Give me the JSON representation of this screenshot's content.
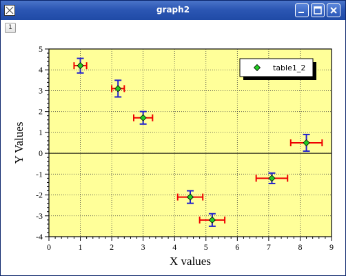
{
  "window": {
    "title": "graph2"
  },
  "tabs": [
    {
      "label": "1"
    }
  ],
  "colors": {
    "plot_background": "#ffff99",
    "marker": "#22cc22",
    "x_error_bar": "#ee0000",
    "y_error_bar": "#2222cc",
    "titlebar": "#2c57b4"
  },
  "icons": {
    "app": "graph-app-icon",
    "minimize": "minimize-icon",
    "maximize": "maximize-icon",
    "close": "close-icon"
  },
  "chart_data": {
    "type": "scatter",
    "xlabel": "X values",
    "ylabel": "Y Values",
    "xlim": [
      0,
      9
    ],
    "ylim": [
      -4,
      5
    ],
    "xticks": [
      0,
      1,
      2,
      3,
      4,
      5,
      6,
      7,
      8,
      9
    ],
    "yticks": [
      -4,
      -3,
      -2,
      -1,
      0,
      1,
      2,
      3,
      4,
      5
    ],
    "grid": true,
    "zero_line": true,
    "legend_position": "top-right",
    "series": [
      {
        "name": "table1_2",
        "marker": "diamond",
        "x": [
          1.0,
          2.2,
          3.0,
          4.5,
          5.2,
          7.1,
          8.2
        ],
        "y": [
          4.2,
          3.1,
          1.7,
          -2.1,
          -3.2,
          -1.2,
          0.5
        ],
        "x_error": [
          0.2,
          0.2,
          0.3,
          0.4,
          0.4,
          0.5,
          0.5
        ],
        "y_error": [
          0.35,
          0.4,
          0.3,
          0.3,
          0.3,
          0.25,
          0.4
        ]
      }
    ]
  }
}
